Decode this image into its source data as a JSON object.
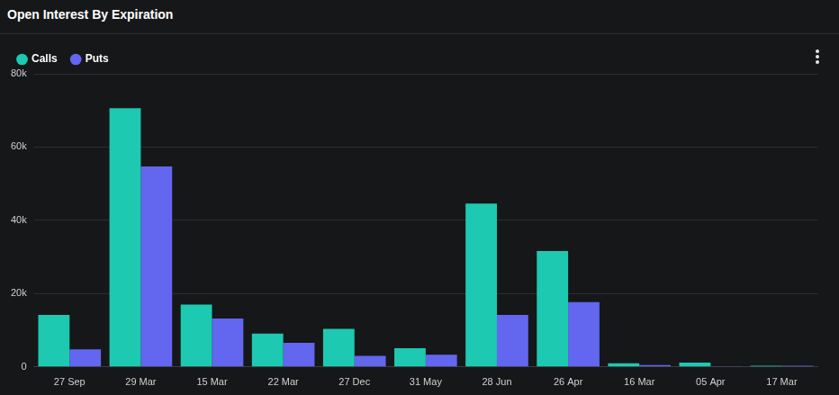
{
  "chart_data": {
    "type": "bar",
    "title": "Open Interest By Expiration",
    "categories": [
      "27 Sep",
      "29 Mar",
      "15 Mar",
      "22 Mar",
      "27 Dec",
      "31 May",
      "28 Jun",
      "26 Apr",
      "16 Mar",
      "05 Apr",
      "17 Mar"
    ],
    "series": [
      {
        "name": "Calls",
        "color": "#1dc9b1",
        "values": [
          14200,
          70600,
          17000,
          9100,
          10400,
          5100,
          44600,
          31600,
          1000,
          1200,
          300
        ]
      },
      {
        "name": "Puts",
        "color": "#6366ee",
        "values": [
          4800,
          54700,
          13200,
          6600,
          3000,
          3300,
          14200,
          17700,
          500,
          100,
          300
        ]
      }
    ],
    "ylim": [
      0,
      80000
    ],
    "yticks": [
      0,
      {
        "value": 20000,
        "label": "20k"
      },
      {
        "value": 40000,
        "label": "40k"
      },
      {
        "value": 60000,
        "label": "60k"
      },
      {
        "value": 80000,
        "label": "80k"
      }
    ],
    "grid": true,
    "legend": "top-left"
  }
}
